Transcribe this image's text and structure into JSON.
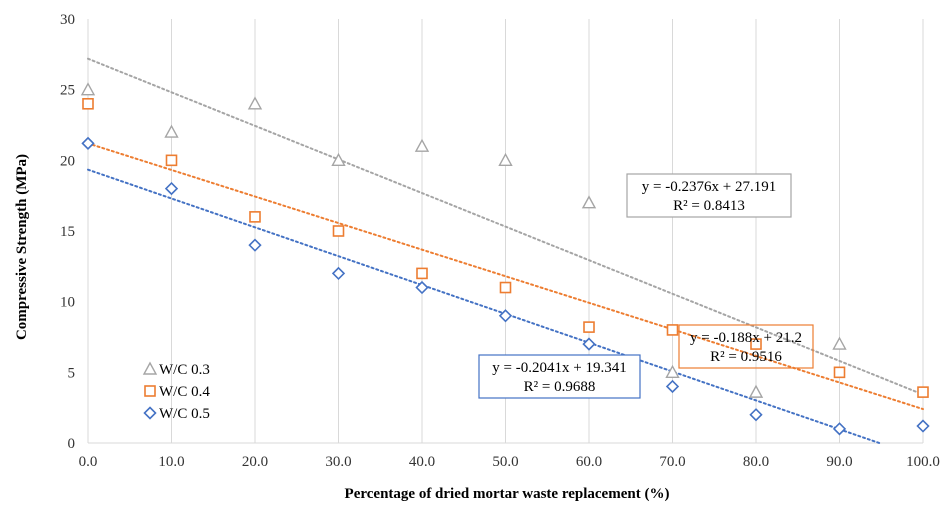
{
  "chart_data": {
    "type": "scatter",
    "title": "",
    "xlabel": "Percentage of dried mortar waste replacement (%)",
    "ylabel": "Compressive Strength (MPa)",
    "xlim": [
      0,
      100
    ],
    "ylim": [
      0,
      30
    ],
    "x_ticks": [
      "0.0",
      "10.0",
      "20.0",
      "30.0",
      "40.0",
      "50.0",
      "60.0",
      "70.0",
      "80.0",
      "90.0",
      "100.0"
    ],
    "y_ticks": [
      "0",
      "5",
      "10",
      "15",
      "20",
      "25",
      "30"
    ],
    "grid": "vertical",
    "legend_position": "bottom-left",
    "x": [
      0,
      10,
      20,
      30,
      40,
      50,
      60,
      70,
      80,
      90,
      100
    ],
    "series": [
      {
        "name": "W/C 0.3",
        "marker": "triangle",
        "color": "#a5a5a5",
        "values": [
          25,
          22,
          24,
          20,
          21,
          20,
          17,
          5,
          3.6,
          7,
          null
        ],
        "trendline": {
          "slope": -0.2376,
          "intercept": 27.191
        },
        "equation": "y = -0.2376x + 27.191",
        "r2": "R² = 0.8413"
      },
      {
        "name": "W/C 0.4",
        "marker": "square",
        "color": "#ed7d31",
        "values": [
          24,
          20,
          16,
          15,
          12,
          11,
          8.2,
          8,
          7,
          5,
          3.6
        ],
        "trendline": {
          "slope": -0.188,
          "intercept": 21.2
        },
        "equation": "y = -0.188x + 21.2",
        "r2": "R² = 0.9516"
      },
      {
        "name": "W/C 0.5",
        "marker": "diamond",
        "color": "#4472c4",
        "values": [
          21.2,
          18,
          14,
          12,
          11,
          9,
          7,
          4,
          2,
          1,
          1.2
        ],
        "trendline": {
          "slope": -0.2041,
          "intercept": 19.341
        },
        "equation": "y = -0.2041x + 19.341",
        "r2": "R² = 0.9688"
      }
    ]
  }
}
